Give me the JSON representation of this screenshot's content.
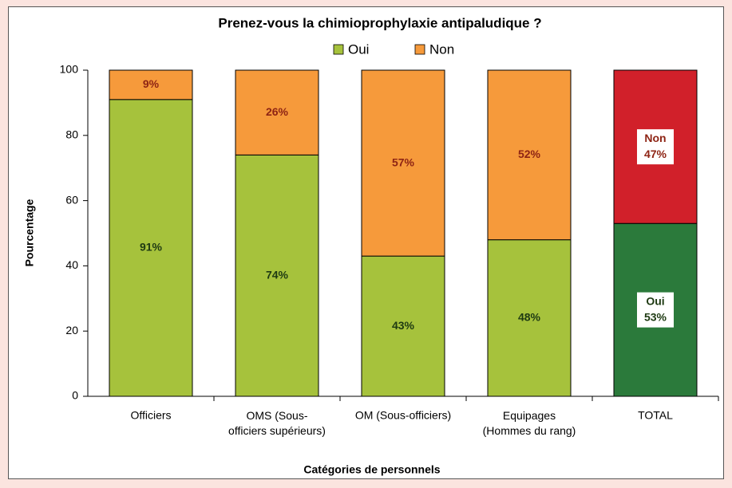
{
  "chart_data": {
    "type": "stacked-bar",
    "title": "Prenez-vous la chimioprophylaxie antipaludique ?",
    "y_label": "Pourcentage",
    "x_label": "Catégories de personnels",
    "categories": [
      "Officiers",
      "OMS (Sous-\nofficiers supérieurs)",
      "OM (Sous-officiers)",
      "Equipages\n(Hommes du rang)",
      "TOTAL"
    ],
    "series": [
      {
        "name": "Oui",
        "color": "#a6c23c",
        "colors": [
          "#a6c23c",
          "#a6c23c",
          "#a6c23c",
          "#a6c23c",
          "#2b7a3b"
        ],
        "label_color": "#1e3a12",
        "values": [
          91,
          74,
          43,
          48,
          53
        ],
        "value_labels": [
          "91%",
          "74%",
          "43%",
          "48%",
          "53%"
        ]
      },
      {
        "name": "Non",
        "color": "#f69a3b",
        "colors": [
          "#f69a3b",
          "#f69a3b",
          "#f69a3b",
          "#f69a3b",
          "#d1202a"
        ],
        "label_color": "#8e2414",
        "values": [
          9,
          26,
          57,
          52,
          47
        ],
        "value_labels": [
          "9%",
          "26%",
          "57%",
          "52%",
          "47%"
        ]
      }
    ],
    "ylim": [
      0,
      100
    ],
    "yticks": [
      0,
      20,
      40,
      60,
      80,
      100
    ],
    "grid": false,
    "legend": "top"
  }
}
